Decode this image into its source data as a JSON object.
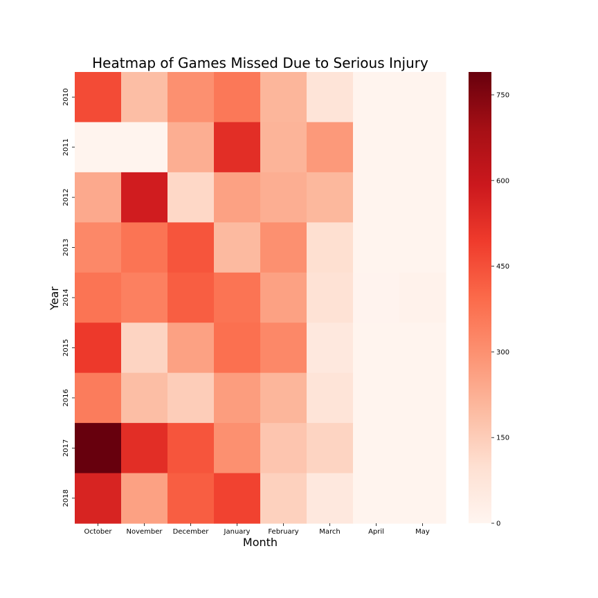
{
  "chart_data": {
    "type": "heatmap",
    "title": "Heatmap of Games Missed Due to Serious Injury",
    "xlabel": "Month",
    "ylabel": "Year",
    "x_categories": [
      "October",
      "November",
      "December",
      "January",
      "February",
      "March",
      "April",
      "May"
    ],
    "y_categories": [
      "2010",
      "2011",
      "2012",
      "2013",
      "2014",
      "2015",
      "2016",
      "2017",
      "2018"
    ],
    "values": [
      [
        460,
        190,
        300,
        360,
        210,
        80,
        5,
        5
      ],
      [
        5,
        5,
        230,
        530,
        215,
        280,
        5,
        5
      ],
      [
        240,
        580,
        120,
        260,
        230,
        205,
        5,
        5
      ],
      [
        320,
        370,
        440,
        200,
        300,
        100,
        5,
        5
      ],
      [
        370,
        340,
        420,
        370,
        260,
        90,
        8,
        15
      ],
      [
        500,
        130,
        260,
        380,
        320,
        60,
        5,
        5
      ],
      [
        350,
        190,
        150,
        270,
        210,
        80,
        5,
        5
      ],
      [
        790,
        530,
        440,
        300,
        170,
        130,
        5,
        5
      ],
      [
        560,
        260,
        420,
        480,
        140,
        60,
        5,
        5
      ]
    ],
    "colorbar": {
      "min": 0,
      "max": 790,
      "ticks": [
        0,
        150,
        300,
        450,
        600,
        750
      ],
      "colormap": "Reds",
      "colors": [
        "#fff5f0",
        "#fee0d2",
        "#fcbba1",
        "#fc9272",
        "#fb6a4a",
        "#ef3b2c",
        "#cb181d",
        "#a50f15",
        "#67000d"
      ]
    }
  }
}
